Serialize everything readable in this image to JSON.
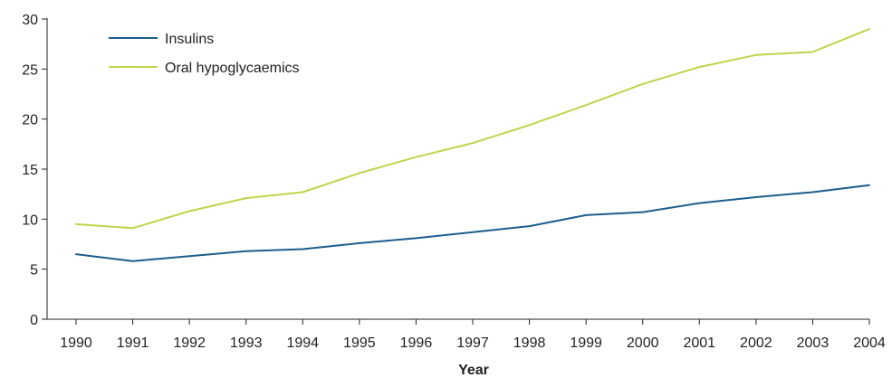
{
  "chart_data": {
    "type": "line",
    "title": "",
    "xlabel": "Year",
    "ylabel": "",
    "x": [
      "1990",
      "1991",
      "1992",
      "1993",
      "1994",
      "1995",
      "1996",
      "1997",
      "1998",
      "1999",
      "2000",
      "2001",
      "2002",
      "2003",
      "2004"
    ],
    "ylim": [
      0,
      30
    ],
    "yticks": [
      0,
      5,
      10,
      15,
      20,
      25,
      30
    ],
    "grid": false,
    "legend_position": "top-left",
    "series": [
      {
        "name": "Insulins",
        "color": "#1b5e8c",
        "values": [
          6.5,
          5.8,
          6.3,
          6.8,
          7.0,
          7.6,
          8.1,
          8.7,
          9.3,
          10.4,
          10.7,
          11.6,
          12.2,
          12.7,
          13.4
        ]
      },
      {
        "name": "Oral hypoglycaemics",
        "color": "#bfd44a",
        "values": [
          9.5,
          9.1,
          10.8,
          12.1,
          12.7,
          14.6,
          16.2,
          17.6,
          19.4,
          21.4,
          23.5,
          25.2,
          26.4,
          26.7,
          29.0
        ]
      }
    ]
  }
}
